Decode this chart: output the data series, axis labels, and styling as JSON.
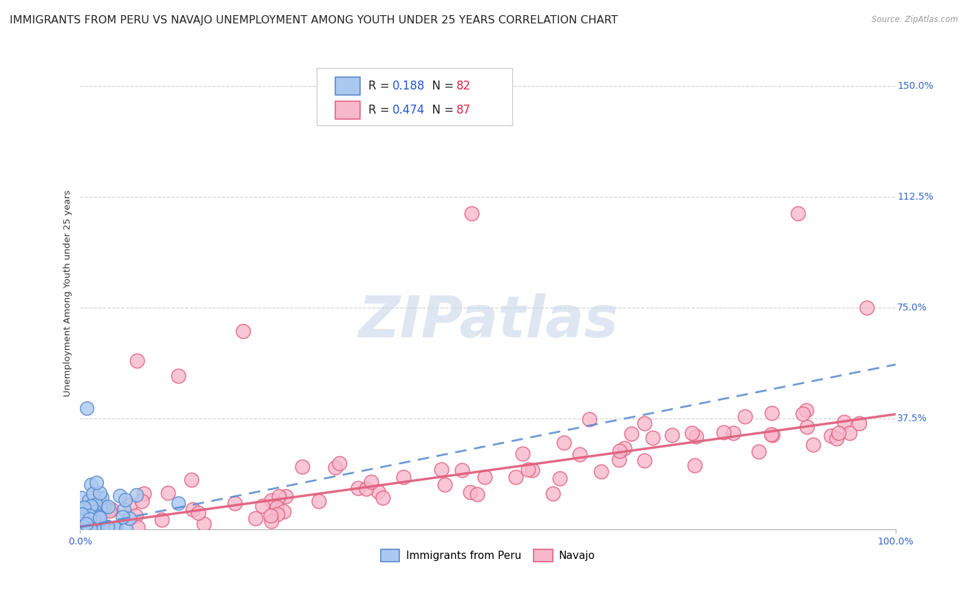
{
  "title": "IMMIGRANTS FROM PERU VS NAVAJO UNEMPLOYMENT AMONG YOUTH UNDER 25 YEARS CORRELATION CHART",
  "source": "Source: ZipAtlas.com",
  "ylabel": "Unemployment Among Youth under 25 years",
  "xlim": [
    0.0,
    1.0
  ],
  "ylim": [
    0.0,
    1.6
  ],
  "xtick_labels": [
    "0.0%",
    "100.0%"
  ],
  "ytick_vals": [
    0.0,
    0.375,
    0.75,
    1.125,
    1.5
  ],
  "ytick_labels": [
    "",
    "37.5%",
    "75.0%",
    "112.5%",
    "150.0%"
  ],
  "grid_color": "#c8c8c8",
  "background_color": "#ffffff",
  "peru_color": "#aac8f0",
  "peru_edge_color": "#5588cc",
  "navajo_color": "#f8b8cc",
  "navajo_edge_color": "#e06080",
  "peru_R": 0.188,
  "peru_N": 82,
  "navajo_R": 0.474,
  "navajo_N": 87,
  "legend_R_color": "#2255dd",
  "legend_N_color": "#dd2244",
  "tick_color": "#3366cc",
  "watermark_text": "ZIPatlas",
  "watermark_color": "#c8d8e8",
  "title_fontsize": 11.5,
  "axis_label_fontsize": 9.5,
  "tick_fontsize": 10,
  "legend_fontsize": 12
}
